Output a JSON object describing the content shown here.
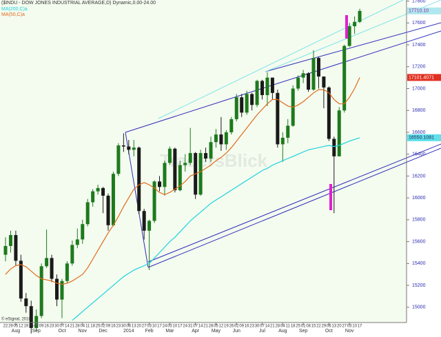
{
  "chart_data": {
    "type": "candlestick",
    "title": "($INDU - DOW JONES INDUSTRIAL AVERAGE,D) Dynamic,0.00-24.00",
    "watermark": "TradersBlick",
    "copyright": "© eSignal, 2010",
    "categories": [
      "22",
      "29",
      "05",
      "12",
      "19",
      "26",
      "02",
      "09",
      "16",
      "23",
      "30",
      "07",
      "14",
      "21",
      "28",
      "04",
      "11",
      "18",
      "25",
      "02",
      "09",
      "16",
      "23",
      "30",
      "06",
      "13",
      "20",
      "27",
      "03",
      "10",
      "17",
      "24",
      "03",
      "10",
      "17",
      "24",
      "31",
      "07",
      "14",
      "21",
      "28",
      "05",
      "12",
      "19",
      "26",
      "02",
      "09",
      "16",
      "23",
      "30",
      "07",
      "14",
      "21",
      "28",
      "04",
      "11",
      "18",
      "25",
      "01",
      "08",
      "15",
      "22",
      "29",
      "06",
      "13",
      "20",
      "27",
      "03",
      "10",
      "17"
    ],
    "months": [
      {
        "value": 2,
        "label": "Aug"
      },
      {
        "value": 6,
        "label": "Sep"
      },
      {
        "value": 11,
        "label": "Oct"
      },
      {
        "value": 15,
        "label": "Nov"
      },
      {
        "value": 19,
        "label": "Dec"
      },
      {
        "value": 24,
        "label": "2014"
      },
      {
        "value": 28,
        "label": "Feb"
      },
      {
        "value": 32,
        "label": "Mar"
      },
      {
        "value": 37,
        "label": "Apr"
      },
      {
        "value": 41,
        "label": "May"
      },
      {
        "value": 45,
        "label": "Jun"
      },
      {
        "value": 50,
        "label": "Jul"
      },
      {
        "value": 54,
        "label": "Aug"
      },
      {
        "value": 58,
        "label": "Sep"
      },
      {
        "value": 63,
        "label": "Oct"
      },
      {
        "value": 67,
        "label": "Nov"
      }
    ],
    "open": [
      15480,
      15560,
      15660,
      15425,
      15080,
      15010,
      14810,
      14920,
      15375,
      15450,
      15260,
      15070,
      15240,
      15400,
      15570,
      15620,
      15760,
      15960,
      16060,
      16090,
      16020,
      15750,
      16220,
      16480,
      16470,
      16440,
      16460,
      15880,
      15700,
      15790,
      16150,
      16100,
      16320,
      16450,
      16070,
      16300,
      16320,
      16410,
      16030,
      16410,
      16360,
      16510,
      16580,
      16490,
      16600,
      16720,
      16920,
      16780,
      16950,
      16850,
      17070,
      16940,
      17100,
      16960,
      16490,
      16550,
      16660,
      17000,
      17100,
      17140,
      16990,
      17280,
      17110,
      17010,
      16540,
      16380,
      16800,
      17390,
      17570,
      17610
    ],
    "high": [
      15640,
      15700,
      15700,
      15480,
      15130,
      15060,
      14980,
      15400,
      15710,
      15480,
      15300,
      15260,
      15420,
      15610,
      15720,
      15800,
      15990,
      16080,
      16120,
      16100,
      16040,
      16240,
      16500,
      16590,
      16530,
      16530,
      16470,
      15900,
      15800,
      16160,
      16200,
      16340,
      16470,
      16460,
      16340,
      16400,
      16640,
      16420,
      16440,
      16460,
      16560,
      16630,
      16740,
      16620,
      16740,
      16950,
      16950,
      16980,
      16960,
      17080,
      17080,
      17150,
      17100,
      16990,
      16600,
      16720,
      17030,
      17120,
      17170,
      17150,
      17350,
      17290,
      17110,
      17020,
      16560,
      16830,
      17400,
      17600,
      17660,
      17730
    ],
    "low": [
      15420,
      15500,
      15380,
      15050,
      14950,
      14760,
      14780,
      14900,
      15360,
      15230,
      15010,
      14900,
      15220,
      15380,
      15540,
      15580,
      15740,
      15920,
      16030,
      15860,
      15700,
      15740,
      16200,
      16420,
      16400,
      16380,
      15850,
      15620,
      15340,
      15770,
      16060,
      16020,
      16300,
      16050,
      16060,
      16240,
      16300,
      15990,
      16020,
      16330,
      16330,
      16460,
      16430,
      16440,
      16580,
      16700,
      16740,
      16760,
      16800,
      16830,
      16900,
      16840,
      16900,
      16460,
      16330,
      16500,
      16650,
      16980,
      17050,
      16970,
      16980,
      17000,
      16820,
      16520,
      15860,
      16380,
      16780,
      17380,
      17500,
      17600
    ],
    "close": [
      15560,
      15660,
      15425,
      15080,
      15010,
      14810,
      14920,
      15375,
      15450,
      15260,
      15070,
      15240,
      15400,
      15570,
      15620,
      15760,
      15960,
      16060,
      16090,
      16020,
      15750,
      16220,
      16480,
      16470,
      16440,
      16460,
      15880,
      15700,
      15790,
      16150,
      16100,
      16320,
      16450,
      16070,
      16300,
      16320,
      16410,
      16030,
      16410,
      16360,
      16510,
      16580,
      16490,
      16600,
      16720,
      16920,
      16780,
      16950,
      16850,
      17070,
      16940,
      17100,
      16960,
      16490,
      16550,
      16660,
      17000,
      17100,
      17140,
      16990,
      17280,
      17110,
      17010,
      16540,
      16380,
      16800,
      17390,
      17570,
      17610,
      17710.1
    ],
    "last_close_label": "17710.10",
    "up_color": "#1d7a1d",
    "down_color": "#1a1a1a",
    "last_tag_color": "#aee8ee",
    "series": [
      {
        "name": "MA(200,C)a",
        "color": "#19d3de",
        "tag_color": "#5fe0ea",
        "values": [
          null,
          null,
          null,
          null,
          null,
          null,
          null,
          null,
          null,
          null,
          null,
          null,
          null,
          14880,
          14920,
          14960,
          15000,
          15040,
          15080,
          15120,
          15160,
          15200,
          15240,
          15280,
          15310,
          15340,
          15360,
          15380,
          15400,
          15450,
          15500,
          15550,
          15600,
          15640,
          15690,
          15740,
          15790,
          15830,
          15870,
          15910,
          15950,
          15980,
          16010,
          16040,
          16070,
          16100,
          16130,
          16160,
          16190,
          16220,
          16250,
          16270,
          16300,
          16320,
          16340,
          16360,
          16380,
          16400,
          16420,
          16440,
          16450,
          16460,
          16470,
          16480,
          16470,
          16480,
          16500,
          16520,
          16535,
          16550.1081
        ]
      },
      {
        "name": "MA(50,C)a",
        "color": "#e06a1a",
        "tag_color": "#e03020",
        "values": [
          15300,
          15350,
          15380,
          15390,
          15370,
          15330,
          15290,
          15260,
          15250,
          15240,
          15220,
          15210,
          15220,
          15240,
          15270,
          15300,
          15360,
          15440,
          15520,
          15600,
          15680,
          15750,
          15830,
          15920,
          16000,
          16080,
          16120,
          16140,
          16120,
          16090,
          16050,
          16030,
          16050,
          16080,
          16110,
          16150,
          16200,
          16220,
          16240,
          16270,
          16300,
          16340,
          16370,
          16410,
          16460,
          16520,
          16580,
          16640,
          16700,
          16760,
          16810,
          16860,
          16900,
          16900,
          16870,
          16840,
          16830,
          16850,
          16880,
          16920,
          16960,
          16990,
          16990,
          16960,
          16900,
          16860,
          16860,
          16920,
          17000,
          17101.4071
        ]
      }
    ],
    "ylim": [
      14860,
      17810
    ],
    "yticks": [
      15000,
      15200,
      15400,
      15600,
      15800,
      16000,
      16200,
      16400,
      16600,
      16800,
      17000,
      17200,
      17400,
      17600,
      17800
    ],
    "grid": false
  }
}
